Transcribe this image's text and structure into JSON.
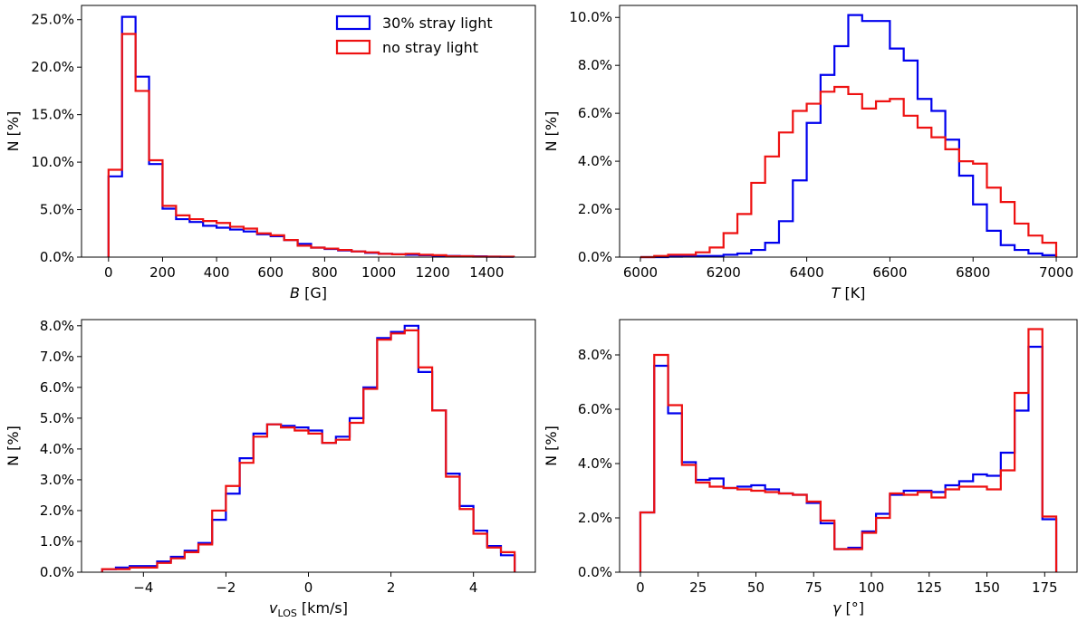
{
  "colors": {
    "series_a": "#0000ee",
    "series_b": "#ee1111"
  },
  "legend": {
    "entries": [
      "30% stray light",
      "no stray light"
    ],
    "placement": "top-right of first panel"
  },
  "chart_data": [
    {
      "type": "histogram-step",
      "id": "B",
      "xlabel_main": "B",
      "xlabel_unit": " [G]",
      "ylabel": "N [%]",
      "xlim": [
        -100,
        1580
      ],
      "ylim": [
        0,
        26.5
      ],
      "xticks": [
        0,
        200,
        400,
        600,
        800,
        1000,
        1200,
        1400
      ],
      "yticks": [
        0,
        5,
        10,
        15,
        20,
        25
      ],
      "ytick_labels": [
        "0.0%",
        "5.0%",
        "10.0%",
        "15.0%",
        "20.0%",
        "25.0%"
      ],
      "bin_start": 0,
      "bin_width": 50,
      "series": [
        {
          "name": "30% stray light",
          "values": [
            8.5,
            25.3,
            19.0,
            9.8,
            5.1,
            4.0,
            3.7,
            3.3,
            3.1,
            2.9,
            2.7,
            2.4,
            2.2,
            1.8,
            1.4,
            1.0,
            0.85,
            0.7,
            0.6,
            0.45,
            0.35,
            0.3,
            0.25,
            0.2,
            0.15,
            0.12,
            0.1,
            0.08,
            0.05,
            0.03
          ]
        },
        {
          "name": "no stray light",
          "values": [
            9.2,
            23.5,
            17.5,
            10.2,
            5.4,
            4.4,
            4.0,
            3.8,
            3.6,
            3.2,
            3.0,
            2.5,
            2.3,
            1.8,
            1.2,
            1.0,
            0.9,
            0.75,
            0.6,
            0.5,
            0.35,
            0.3,
            0.35,
            0.25,
            0.2,
            0.1,
            0.1,
            0.05,
            0.05,
            0.05
          ]
        }
      ]
    },
    {
      "type": "histogram-step",
      "id": "T",
      "xlabel_main": "T",
      "xlabel_unit": " [K]",
      "ylabel": "N [%]",
      "xlim": [
        5950,
        7050
      ],
      "ylim": [
        0,
        10.5
      ],
      "xticks": [
        6000,
        6200,
        6400,
        6600,
        6800,
        7000
      ],
      "yticks": [
        0,
        2,
        4,
        6,
        8,
        10
      ],
      "ytick_labels": [
        "0.0%",
        "2.0%",
        "4.0%",
        "6.0%",
        "8.0%",
        "10.0%"
      ],
      "bin_start": 6000,
      "bin_width": 33.33,
      "series": [
        {
          "name": "30% stray light",
          "values": [
            0.0,
            0.0,
            0.02,
            0.03,
            0.05,
            0.05,
            0.1,
            0.15,
            0.3,
            0.6,
            1.5,
            3.2,
            5.6,
            7.6,
            8.8,
            10.1,
            9.85,
            9.85,
            8.7,
            8.2,
            6.6,
            6.1,
            4.9,
            3.4,
            2.2,
            1.1,
            0.5,
            0.3,
            0.15,
            0.08
          ]
        },
        {
          "name": "no stray light",
          "values": [
            0.0,
            0.05,
            0.1,
            0.1,
            0.2,
            0.4,
            1.0,
            1.8,
            3.1,
            4.2,
            5.2,
            6.1,
            6.4,
            6.9,
            7.1,
            6.8,
            6.2,
            6.5,
            6.6,
            5.9,
            5.4,
            5.0,
            4.5,
            4.0,
            3.9,
            2.9,
            2.3,
            1.4,
            0.9,
            0.6
          ]
        }
      ]
    },
    {
      "type": "histogram-step",
      "id": "vlos",
      "xlabel_main": "v",
      "xlabel_sub": "LOS",
      "xlabel_unit": " [km/s]",
      "ylabel": "N [%]",
      "xlim": [
        -5.5,
        5.5
      ],
      "ylim": [
        0,
        8.2
      ],
      "xticks": [
        -4,
        -2,
        0,
        2,
        4
      ],
      "xtick_labels": [
        "−4",
        "−2",
        "0",
        "2",
        "4"
      ],
      "yticks": [
        0,
        1,
        2,
        3,
        4,
        5,
        6,
        7,
        8
      ],
      "ytick_labels": [
        "0.0%",
        "1.0%",
        "2.0%",
        "3.0%",
        "4.0%",
        "5.0%",
        "6.0%",
        "7.0%",
        "8.0%"
      ],
      "bin_start": -5,
      "bin_width": 0.3333,
      "series": [
        {
          "name": "30% stray light",
          "values": [
            0.1,
            0.15,
            0.2,
            0.2,
            0.35,
            0.5,
            0.7,
            0.95,
            1.7,
            2.55,
            3.7,
            4.5,
            4.8,
            4.75,
            4.7,
            4.6,
            4.2,
            4.4,
            5.0,
            6.0,
            7.6,
            7.8,
            8.0,
            6.5,
            5.25,
            3.2,
            2.15,
            1.35,
            0.85,
            0.55
          ]
        },
        {
          "name": "no stray light",
          "values": [
            0.1,
            0.1,
            0.15,
            0.15,
            0.3,
            0.45,
            0.65,
            0.9,
            2.0,
            2.8,
            3.55,
            4.4,
            4.8,
            4.7,
            4.6,
            4.5,
            4.2,
            4.3,
            4.85,
            5.95,
            7.55,
            7.75,
            7.85,
            6.65,
            5.25,
            3.1,
            2.05,
            1.25,
            0.8,
            0.65
          ]
        }
      ]
    },
    {
      "type": "histogram-step",
      "id": "gamma",
      "xlabel_main": "γ",
      "xlabel_unit": " [°]",
      "ylabel": "N [%]",
      "xlim": [
        -9,
        189
      ],
      "ylim": [
        0,
        9.3
      ],
      "xticks": [
        0,
        25,
        50,
        75,
        100,
        125,
        150,
        175
      ],
      "yticks": [
        0,
        2,
        4,
        6,
        8
      ],
      "ytick_labels": [
        "0.0%",
        "2.0%",
        "4.0%",
        "6.0%",
        "8.0%"
      ],
      "bin_start": 0,
      "bin_width": 6,
      "series": [
        {
          "name": "30% stray light",
          "values": [
            2.2,
            7.6,
            5.85,
            4.05,
            3.4,
            3.45,
            3.1,
            3.15,
            3.2,
            3.05,
            2.9,
            2.85,
            2.55,
            1.8,
            0.85,
            0.9,
            1.5,
            2.15,
            2.85,
            3.0,
            3.0,
            2.95,
            3.2,
            3.35,
            3.6,
            3.55,
            4.4,
            5.95,
            8.3,
            1.95
          ]
        },
        {
          "name": "no stray light",
          "values": [
            2.2,
            8.0,
            6.15,
            3.95,
            3.3,
            3.15,
            3.1,
            3.05,
            3.0,
            2.95,
            2.9,
            2.85,
            2.6,
            1.9,
            0.85,
            0.85,
            1.45,
            2.0,
            2.9,
            2.85,
            2.95,
            2.75,
            3.05,
            3.15,
            3.15,
            3.05,
            3.75,
            6.6,
            8.95,
            2.05
          ]
        }
      ]
    }
  ]
}
